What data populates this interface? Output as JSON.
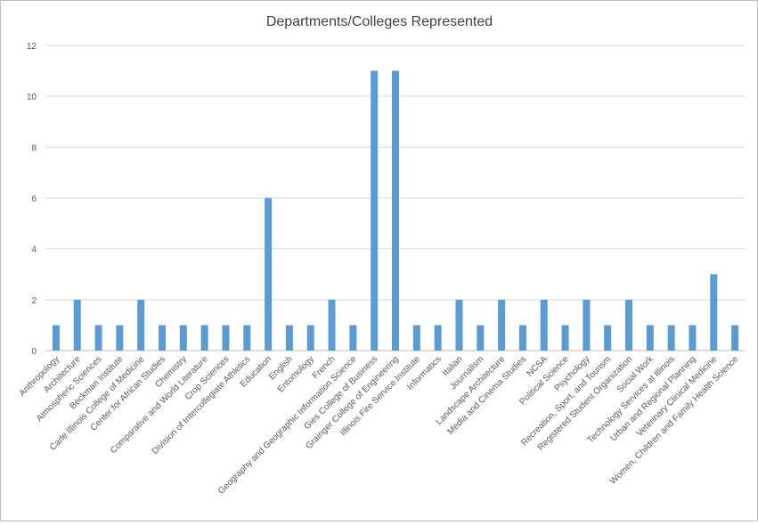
{
  "chart_data": {
    "type": "bar",
    "title": "Departments/Colleges  Represented",
    "xlabel": "",
    "ylabel": "",
    "ylim": [
      0,
      12
    ],
    "yticks": [
      0,
      2,
      4,
      6,
      8,
      10,
      12
    ],
    "grid": true,
    "legend": "none",
    "bar_color": "#5b9bd5",
    "categories": [
      "Anthropology",
      "Architecture",
      "Atmospheric Sciences",
      "Beckman Institute",
      "Carle Illinois College of Medicine",
      "Center for African Studies",
      "Chemistry",
      "Comparative and World Literature",
      "Crop Sciences",
      "Division of Intercollegiate Athletics",
      "Education",
      "English",
      "Entomology",
      "French",
      "Geography and Geographic Information Science",
      "Gies College of Business",
      "Grainger College of Engineering",
      "Illinois Fire Service Institute",
      "Informatics",
      "Italian",
      "Journalism",
      "Landscape Architecture",
      "Media and Cinema Studies",
      "NCSA",
      "Political Science",
      "Psychology",
      "Recreation, Sport, and Tourism",
      "Registered Student Organization",
      "Social Work",
      "Technology Services at Illinois",
      "Urban and Regional Planning",
      "Veterinary Clinical Medicine",
      "Women, Children and Family Health Science"
    ],
    "values": [
      1,
      2,
      1,
      1,
      2,
      1,
      1,
      1,
      1,
      1,
      6,
      1,
      1,
      2,
      1,
      11,
      11,
      1,
      1,
      2,
      1,
      2,
      1,
      2,
      1,
      2,
      1,
      2,
      1,
      1,
      1,
      3,
      1
    ]
  }
}
